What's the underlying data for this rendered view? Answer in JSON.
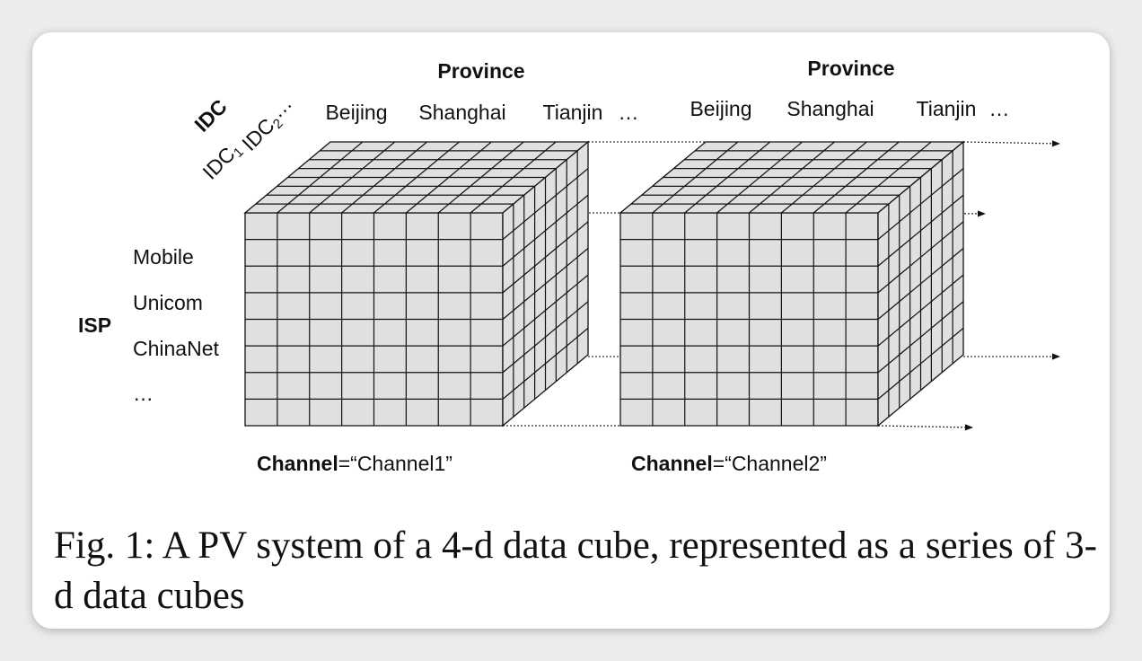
{
  "idc": {
    "axis": "IDC",
    "items": [
      {
        "base": "IDC",
        "sub": "1"
      },
      {
        "base": "IDC",
        "sub": "2",
        "suffix": "…"
      }
    ]
  },
  "isp": {
    "axis": "ISP",
    "items": [
      "Mobile",
      "Unicom",
      "ChinaNet",
      "…"
    ]
  },
  "cubes": [
    {
      "province_axis": "Province",
      "provinces": [
        "Beijing",
        "Shanghai",
        "Tianjin",
        "…"
      ],
      "channel_key": "Channel",
      "channel_value": "=“Channel1”"
    },
    {
      "province_axis": "Province",
      "provinces": [
        "Beijing",
        "Shanghai",
        "Tianjin",
        "…"
      ],
      "channel_key": "Channel",
      "channel_value": "=“Channel2”"
    }
  ],
  "caption": "Fig. 1: A PV system of a 4-d data cube, represented as a series of 3-d data cubes"
}
